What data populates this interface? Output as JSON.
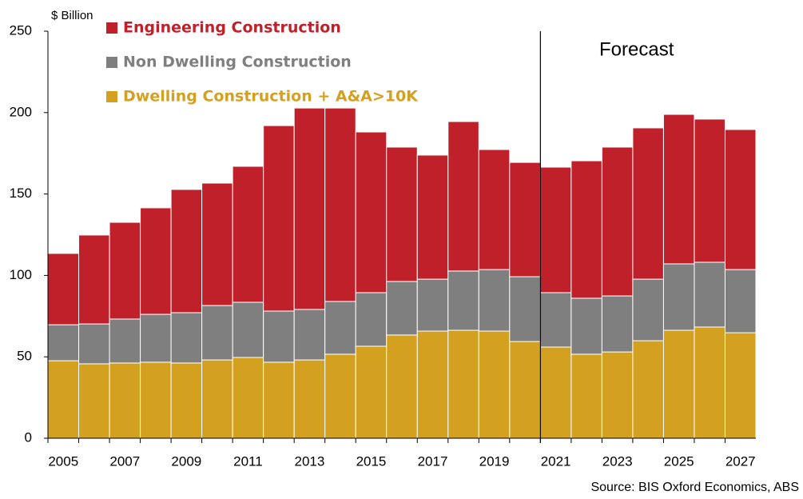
{
  "chart_data": {
    "type": "stacked_bar",
    "y_axis_label": "$ Billion",
    "annotation": "Forecast",
    "source": "Source: BIS Oxford Economics, ABS",
    "categories": [
      "2005",
      null,
      "2007",
      null,
      "2009",
      null,
      "2011",
      null,
      "2013",
      null,
      "2015",
      null,
      "2017",
      null,
      "2019",
      null,
      "2021",
      null,
      "2023",
      null,
      "2025",
      null,
      "2027"
    ],
    "series": [
      {
        "name": "Dwelling Construction + A&A>10K",
        "color": "#d4a020",
        "values": [
          47.6,
          45.7,
          46.2,
          46.7,
          46.2,
          48.1,
          49.6,
          46.7,
          48.1,
          51.6,
          56.5,
          63.4,
          65.8,
          66.3,
          65.8,
          59.4,
          56.0,
          51.6,
          53.0,
          59.9,
          66.3,
          68.3,
          64.8
        ]
      },
      {
        "name": "Non Dwelling Construction",
        "color": "#7f7f7f",
        "values": [
          22.1,
          24.5,
          27.0,
          29.4,
          30.9,
          33.4,
          33.9,
          31.4,
          31.0,
          32.4,
          32.9,
          32.9,
          31.9,
          36.4,
          37.8,
          39.8,
          33.4,
          34.4,
          34.4,
          37.8,
          40.8,
          39.8,
          38.8
        ]
      },
      {
        "name": "Engineering Construction",
        "color": "#c0202a",
        "values": [
          43.8,
          54.6,
          59.4,
          65.4,
          75.7,
          75.2,
          83.5,
          113.9,
          123.7,
          118.8,
          98.7,
          82.5,
          76.2,
          91.8,
          73.7,
          70.2,
          77.1,
          84.4,
          91.4,
          92.9,
          91.8,
          87.9,
          86.0
        ]
      }
    ],
    "ylim": [
      0,
      250
    ],
    "yticks": [
      0,
      50,
      100,
      150,
      200,
      250
    ],
    "grid": false
  }
}
